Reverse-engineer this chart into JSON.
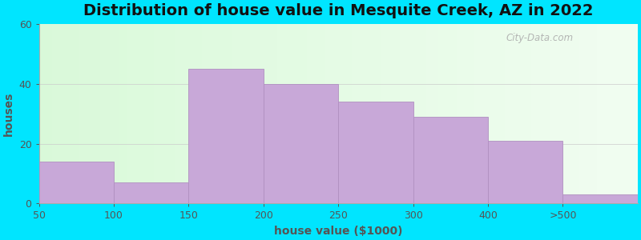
{
  "title": "Distribution of house value in Mesquite Creek, AZ in 2022",
  "xlabel": "house value ($1000)",
  "ylabel": "houses",
  "tick_labels": [
    "50",
    "100",
    "150",
    "200",
    "250",
    "300",
    "400",
    ">500"
  ],
  "values": [
    14,
    7,
    45,
    40,
    34,
    29,
    21,
    3
  ],
  "bar_color": "#c8a8d8",
  "bar_edgecolor": "#b090c0",
  "ylim": [
    0,
    60
  ],
  "yticks": [
    0,
    20,
    40,
    60
  ],
  "fig_bg": "#00e5ff",
  "axes_bg_left": "#d4eeda",
  "axes_bg_right": "#f0fdf0",
  "title_fontsize": 14,
  "axis_label_fontsize": 10,
  "tick_fontsize": 9,
  "watermark_text": "City-Data.com",
  "watermark_color": "#aaaaaa",
  "label_color": "#555555"
}
